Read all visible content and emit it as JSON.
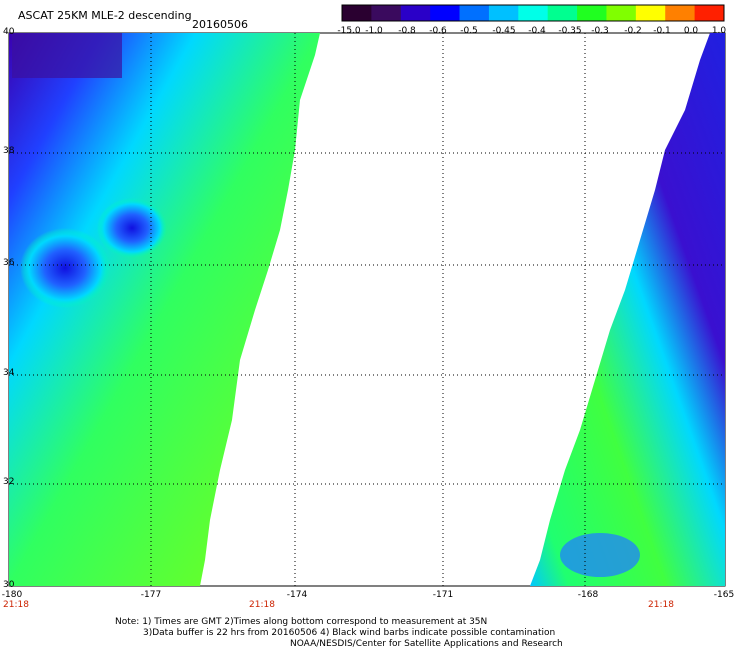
{
  "header": {
    "title": "ASCAT 25KM MLE-2 descending",
    "date": "20160506"
  },
  "colorbar": {
    "tick_labels": [
      "-15.0",
      "-1.0",
      "-0.8",
      "-0.6",
      "-0.5",
      "-0.45",
      "-0.4",
      "-0.35",
      "-0.3",
      "-0.2",
      "-0.1",
      "0.0",
      "1.0"
    ],
    "colors": [
      "#2a0030",
      "#3a0a5e",
      "#2a00c8",
      "#0000ff",
      "#0070ff",
      "#00c0ff",
      "#00ffe8",
      "#00ff90",
      "#20ff20",
      "#80ff00",
      "#ffff00",
      "#ff8000",
      "#ff2000"
    ]
  },
  "map": {
    "lat_labels": [
      "40",
      "38",
      "36",
      "34",
      "32",
      "30"
    ],
    "lon_labels": [
      "-180",
      "-177",
      "-174",
      "-171",
      "-168",
      "-165"
    ],
    "time_labels": [
      "21:18",
      "21:18",
      "21:18"
    ],
    "gridlines": true
  },
  "footer": {
    "line1": "Note: 1) Times are GMT 2)Times along bottom correspond to measurement at 35N",
    "line2": "3)Data buffer is 22 hrs from 20160506 4) Black wind barbs indicate possible contamination",
    "line3": "NOAA/NESDIS/Center for Satellite Applications and Research"
  }
}
